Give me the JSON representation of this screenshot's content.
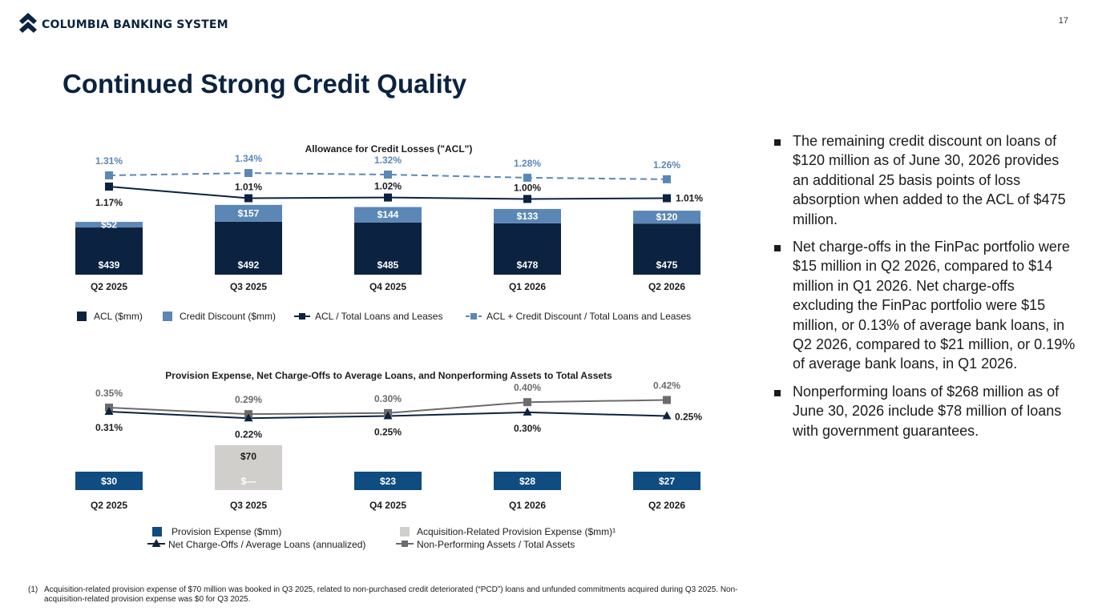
{
  "header": {
    "logo_text": "COLUMBIA BANKING SYSTEM",
    "page_number": "17",
    "title": "Continued Strong Credit Quality",
    "brand_color": "#0b2340"
  },
  "chart_data": [
    {
      "type": "bar",
      "title": "Allowance for Credit Losses (\"ACL\")",
      "categories": [
        "Q2 2025",
        "Q3 2025",
        "Q4 2025",
        "Q1 2026",
        "Q2 2026"
      ],
      "series": [
        {
          "name": "ACL ($mm)",
          "kind": "bar",
          "stack": "a",
          "color": "#0b2340",
          "values": [
            439,
            492,
            485,
            478,
            475
          ],
          "labels": [
            "$439",
            "$492",
            "$485",
            "$478",
            "$475"
          ]
        },
        {
          "name": "Credit Discount ($mm)",
          "kind": "bar",
          "stack": "a",
          "color": "#5b87b6",
          "values": [
            52,
            157,
            144,
            133,
            120
          ],
          "labels": [
            "$52",
            "$157",
            "$144",
            "$133",
            "$120"
          ]
        },
        {
          "name": "ACL / Total Loans and Leases",
          "kind": "line",
          "color": "#0b2340",
          "values": [
            1.17,
            1.01,
            1.02,
            1.0,
            1.01
          ],
          "labels": [
            "1.17%",
            "1.01%",
            "1.02%",
            "1.00%",
            "1.01%"
          ]
        },
        {
          "name": "ACL + Credit Discount / Total Loans and Leases",
          "kind": "line",
          "dashed": true,
          "color": "#5b87b6",
          "values": [
            1.31,
            1.34,
            1.32,
            1.28,
            1.26
          ],
          "labels": [
            "1.31%",
            "1.34%",
            "1.32%",
            "1.28%",
            "1.26%"
          ]
        }
      ],
      "legend_position": "bottom"
    },
    {
      "type": "bar",
      "title": "Provision Expense, Net Charge-Offs to Average Loans, and Nonperforming Assets to Total Assets",
      "categories": [
        "Q2 2025",
        "Q3 2025",
        "Q4 2025",
        "Q1 2026",
        "Q2 2026"
      ],
      "series": [
        {
          "name": "Provision Expense ($mm)",
          "kind": "bar",
          "stack": "a",
          "color": "#0f4c81",
          "values": [
            30,
            0,
            23,
            28,
            27
          ],
          "labels": [
            "$30",
            "$—",
            "$23",
            "$28",
            "$27"
          ]
        },
        {
          "name": "Acquisition-Related Provision Expense ($mm)¹",
          "kind": "bar",
          "stack": "a",
          "color": "#d0cfcb",
          "values": [
            0,
            70,
            0,
            0,
            0
          ],
          "labels": [
            "",
            "$70",
            "",
            "",
            ""
          ]
        },
        {
          "name": "Net Charge-Offs / Average Loans (annualized)",
          "kind": "line",
          "marker": "triangle",
          "color": "#0b2340",
          "values": [
            0.31,
            0.22,
            0.25,
            0.3,
            0.25
          ],
          "labels": [
            "0.31%",
            "0.22%",
            "0.25%",
            "0.30%",
            "0.25%"
          ]
        },
        {
          "name": "Non-Performing Assets / Total Assets",
          "kind": "line",
          "marker": "square",
          "color": "#6b6b6b",
          "values": [
            0.35,
            0.29,
            0.3,
            0.4,
            0.42
          ],
          "labels": [
            "0.35%",
            "0.29%",
            "0.30%",
            "0.40%",
            "0.42%"
          ]
        }
      ],
      "legend_position": "bottom"
    }
  ],
  "bullets": [
    "The remaining credit discount on loans of $120 million as of June 30, 2026 provides an additional 25 basis points of loss absorption when added to the ACL of $475 million.",
    "Net charge-offs in the FinPac portfolio were $15 million in Q2 2026, compared to $14 million in Q1 2026. Net charge-offs excluding the FinPac portfolio were $15 million, or 0.13% of average bank loans, in Q2 2026, compared to $21 million, or 0.19% of average bank loans, in Q1 2026.",
    "Nonperforming loans of $268 million as of June 30, 2026 include $78 million of loans with government guarantees."
  ],
  "footnote": {
    "marker": "(1)",
    "text": "Acquisition-related provision expense of $70 million was booked in Q3 2025, related to non-purchased credit deteriorated (“PCD”) loans and unfunded commitments acquired during Q3 2025. Non-acquisition-related provision expense was $0 for Q3 2025."
  }
}
